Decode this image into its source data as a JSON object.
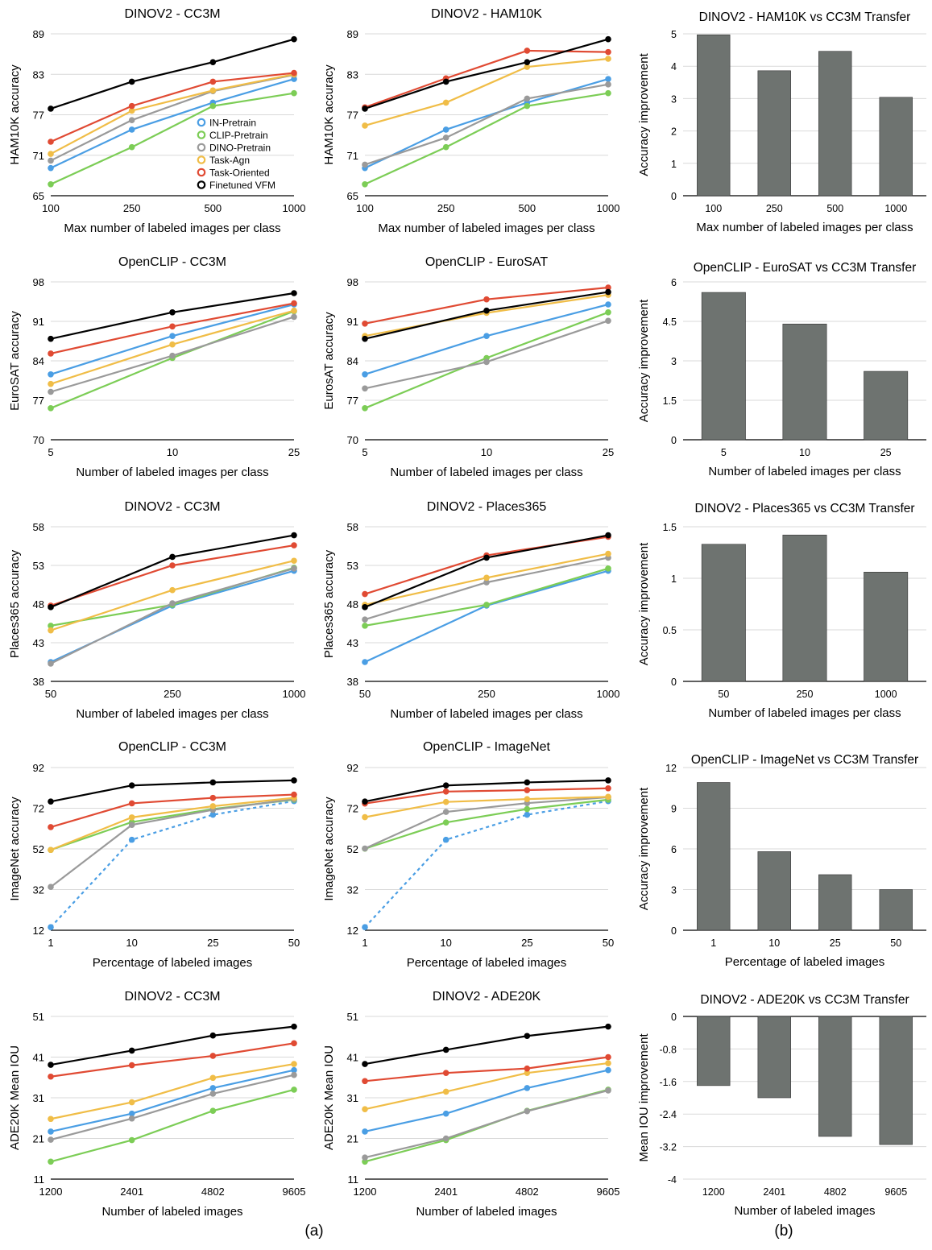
{
  "colors": {
    "IN-Pretrain": "#4a9ee4",
    "CLIP-Pretrain": "#7ccd56",
    "DINO-Pretrain": "#9a9a9a",
    "Task-Agn": "#f0bd47",
    "Task-Oriented": "#e04a33",
    "Finetuned VFM": "#000000",
    "bar": "#6e7370"
  },
  "legend_entries": [
    "IN-Pretrain",
    "CLIP-Pretrain",
    "DINO-Pretrain",
    "Task-Agn",
    "Task-Oriented",
    "Finetuned VFM"
  ],
  "sub_labels": {
    "a": "(a)",
    "b": "(b)"
  },
  "chart_data": [
    {
      "id": "r1c1",
      "type": "line",
      "title": "DINOV2 - CC3M",
      "xlabel": "Max number of labeled images per class",
      "ylabel": "HAM10K accuracy",
      "categories": [
        "100",
        "250",
        "500",
        "1000"
      ],
      "yticks": [
        "65",
        "71",
        "77",
        "83",
        "89"
      ],
      "ylim": [
        65,
        89
      ],
      "legend": "center-right",
      "series": [
        {
          "name": "IN-Pretrain",
          "values": [
            69.1,
            74.8,
            78.8,
            82.3
          ]
        },
        {
          "name": "CLIP-Pretrain",
          "values": [
            66.7,
            72.2,
            78.3,
            80.2
          ]
        },
        {
          "name": "DINO-Pretrain",
          "values": [
            70.2,
            76.2,
            80.5,
            82.9
          ]
        },
        {
          "name": "Task-Agn",
          "values": [
            71.2,
            77.6,
            80.6,
            83.0
          ]
        },
        {
          "name": "Task-Oriented",
          "values": [
            73.0,
            78.3,
            81.9,
            83.2
          ]
        },
        {
          "name": "Finetuned VFM",
          "values": [
            77.9,
            81.9,
            84.8,
            88.2
          ]
        }
      ]
    },
    {
      "id": "r1c2",
      "type": "line",
      "title": "DINOV2 - HAM10K",
      "xlabel": "Max number of labeled images per class",
      "ylabel": "HAM10K accuracy",
      "categories": [
        "100",
        "250",
        "500",
        "1000"
      ],
      "yticks": [
        "65",
        "71",
        "77",
        "83",
        "89"
      ],
      "ylim": [
        65,
        89
      ],
      "series": [
        {
          "name": "IN-Pretrain",
          "values": [
            69.1,
            74.8,
            78.8,
            82.3
          ]
        },
        {
          "name": "CLIP-Pretrain",
          "values": [
            66.7,
            72.2,
            78.3,
            80.2
          ]
        },
        {
          "name": "DINO-Pretrain",
          "values": [
            69.6,
            73.6,
            79.4,
            81.5
          ]
        },
        {
          "name": "Task-Agn",
          "values": [
            75.4,
            78.8,
            84.1,
            85.3
          ]
        },
        {
          "name": "Task-Oriented",
          "values": [
            78.1,
            82.4,
            86.5,
            86.3
          ]
        },
        {
          "name": "Finetuned VFM",
          "values": [
            77.9,
            81.9,
            84.8,
            88.2
          ]
        }
      ]
    },
    {
      "id": "r2c1",
      "type": "line",
      "title": "OpenCLIP - CC3M",
      "xlabel": "Number of labeled images per class",
      "ylabel": "EuroSAT accuracy",
      "categories": [
        "5",
        "10",
        "25"
      ],
      "yticks": [
        "70",
        "77",
        "84",
        "91",
        "98"
      ],
      "ylim": [
        70,
        98
      ],
      "series": [
        {
          "name": "IN-Pretrain",
          "values": [
            81.6,
            88.4,
            94.0
          ]
        },
        {
          "name": "CLIP-Pretrain",
          "values": [
            75.6,
            84.5,
            92.8
          ]
        },
        {
          "name": "DINO-Pretrain",
          "values": [
            78.5,
            84.9,
            91.8
          ]
        },
        {
          "name": "Task-Agn",
          "values": [
            79.9,
            86.9,
            92.9
          ]
        },
        {
          "name": "Task-Oriented",
          "values": [
            85.3,
            90.1,
            94.2
          ]
        },
        {
          "name": "Finetuned VFM",
          "values": [
            87.9,
            92.6,
            96.0
          ]
        }
      ]
    },
    {
      "id": "r2c2",
      "type": "line",
      "title": "OpenCLIP - EuroSAT",
      "xlabel": "Number of labeled images per class",
      "ylabel": "EurosAT accuracy",
      "categories": [
        "5",
        "10",
        "25"
      ],
      "yticks": [
        "70",
        "77",
        "84",
        "91",
        "98"
      ],
      "ylim": [
        70,
        98
      ],
      "series": [
        {
          "name": "IN-Pretrain",
          "values": [
            81.6,
            88.4,
            94.0
          ]
        },
        {
          "name": "CLIP-Pretrain",
          "values": [
            75.6,
            84.5,
            92.6
          ]
        },
        {
          "name": "DINO-Pretrain",
          "values": [
            79.1,
            83.8,
            91.1
          ]
        },
        {
          "name": "Task-Agn",
          "values": [
            88.4,
            92.5,
            95.7
          ]
        },
        {
          "name": "Task-Oriented",
          "values": [
            90.6,
            94.9,
            97.0
          ]
        },
        {
          "name": "Finetuned VFM",
          "values": [
            87.9,
            92.9,
            96.2
          ]
        }
      ]
    },
    {
      "id": "r3c1",
      "type": "line",
      "title": "DINOV2 - CC3M",
      "xlabel": "Number of labeled images per class",
      "ylabel": "Places365 accuracy",
      "categories": [
        "50",
        "250",
        "1000"
      ],
      "yticks": [
        "38",
        "43",
        "48",
        "53",
        "58"
      ],
      "ylim": [
        38,
        58
      ],
      "series": [
        {
          "name": "IN-Pretrain",
          "values": [
            40.5,
            47.8,
            52.3
          ]
        },
        {
          "name": "CLIP-Pretrain",
          "values": [
            45.2,
            47.9,
            52.7
          ]
        },
        {
          "name": "DINO-Pretrain",
          "values": [
            40.3,
            48.1,
            52.6
          ]
        },
        {
          "name": "Task-Agn",
          "values": [
            44.6,
            49.8,
            53.6
          ]
        },
        {
          "name": "Task-Oriented",
          "values": [
            47.8,
            53.0,
            55.6
          ]
        },
        {
          "name": "Finetuned VFM",
          "values": [
            47.6,
            54.1,
            56.9
          ]
        }
      ]
    },
    {
      "id": "r3c2",
      "type": "line",
      "title": "DINOV2 - Places365",
      "xlabel": "Number of labeled images per class",
      "ylabel": "Places365 accuracy",
      "categories": [
        "50",
        "250",
        "1000"
      ],
      "yticks": [
        "38",
        "43",
        "48",
        "53",
        "58"
      ],
      "ylim": [
        38,
        58
      ],
      "series": [
        {
          "name": "IN-Pretrain",
          "values": [
            40.5,
            47.8,
            52.3
          ]
        },
        {
          "name": "CLIP-Pretrain",
          "values": [
            45.2,
            47.9,
            52.6
          ]
        },
        {
          "name": "DINO-Pretrain",
          "values": [
            46.0,
            50.8,
            54.0
          ]
        },
        {
          "name": "Task-Agn",
          "values": [
            47.9,
            51.4,
            54.5
          ]
        },
        {
          "name": "Task-Oriented",
          "values": [
            49.3,
            54.3,
            56.7
          ]
        },
        {
          "name": "Finetuned VFM",
          "values": [
            47.6,
            54.0,
            56.9
          ]
        }
      ]
    },
    {
      "id": "r4c1",
      "type": "line",
      "title": "OpenCLIP - CC3M",
      "xlabel": "Percentage of labeled images",
      "ylabel": "ImageNet accuracy",
      "categories": [
        "1",
        "10",
        "25",
        "50"
      ],
      "yticks": [
        "12",
        "32",
        "52",
        "72",
        "92"
      ],
      "ylim": [
        12,
        92
      ],
      "series": [
        {
          "name": "IN-Pretrain",
          "values": [
            13.5,
            56.5,
            68.8,
            75.5
          ],
          "dashed": true
        },
        {
          "name": "CLIP-Pretrain",
          "values": [
            51.5,
            65.2,
            71.6,
            76.2
          ]
        },
        {
          "name": "DINO-Pretrain",
          "values": [
            33.3,
            63.8,
            71.2,
            76.5
          ]
        },
        {
          "name": "Task-Agn",
          "values": [
            51.5,
            67.5,
            73.0,
            77.1
          ]
        },
        {
          "name": "Task-Oriented",
          "values": [
            62.7,
            74.4,
            77.1,
            78.7
          ]
        },
        {
          "name": "Finetuned VFM",
          "values": [
            75.3,
            83.2,
            84.7,
            85.7
          ]
        }
      ]
    },
    {
      "id": "r4c2",
      "type": "line",
      "title": "OpenCLIP - ImageNet",
      "xlabel": "Percentage of labeled images",
      "ylabel": "ImageNet accuracy",
      "categories": [
        "1",
        "10",
        "25",
        "50"
      ],
      "yticks": [
        "12",
        "32",
        "52",
        "72",
        "92"
      ],
      "ylim": [
        12,
        92
      ],
      "series": [
        {
          "name": "IN-Pretrain",
          "values": [
            13.5,
            56.5,
            68.8,
            75.5
          ],
          "dashed": true
        },
        {
          "name": "CLIP-Pretrain",
          "values": [
            52.1,
            65.0,
            71.6,
            76.2
          ]
        },
        {
          "name": "DINO-Pretrain",
          "values": [
            52.2,
            70.2,
            74.5,
            77.4
          ]
        },
        {
          "name": "Task-Agn",
          "values": [
            67.6,
            75.1,
            76.5,
            77.6
          ]
        },
        {
          "name": "Task-Oriented",
          "values": [
            74.3,
            80.2,
            80.9,
            81.8
          ]
        },
        {
          "name": "Finetuned VFM",
          "values": [
            75.3,
            83.2,
            84.7,
            85.7
          ]
        }
      ]
    },
    {
      "id": "r5c1",
      "type": "line",
      "title": "DINOV2 - CC3M",
      "xlabel": "Number of labeled images",
      "ylabel": "ADE20K Mean IOU",
      "categories": [
        "1200",
        "2401",
        "4802",
        "9605"
      ],
      "yticks": [
        "11",
        "21",
        "31",
        "41",
        "51"
      ],
      "ylim": [
        11,
        51
      ],
      "series": [
        {
          "name": "IN-Pretrain",
          "values": [
            22.7,
            27.1,
            33.4,
            37.8
          ]
        },
        {
          "name": "CLIP-Pretrain",
          "values": [
            15.3,
            20.6,
            27.8,
            33.0
          ]
        },
        {
          "name": "DINO-Pretrain",
          "values": [
            20.7,
            25.9,
            32.0,
            36.6
          ]
        },
        {
          "name": "Task-Agn",
          "values": [
            25.8,
            29.9,
            35.9,
            39.3
          ]
        },
        {
          "name": "Task-Oriented",
          "values": [
            36.2,
            39.0,
            41.3,
            44.4
          ]
        },
        {
          "name": "Finetuned VFM",
          "values": [
            39.1,
            42.6,
            46.3,
            48.5
          ]
        }
      ]
    },
    {
      "id": "r5c2",
      "type": "line",
      "title": "DINOV2 - ADE20K",
      "xlabel": "Number of labeled images",
      "ylabel": "ADE20K Mean IOU",
      "categories": [
        "1200",
        "2401",
        "4802",
        "9605"
      ],
      "yticks": [
        "11",
        "21",
        "31",
        "41",
        "51"
      ],
      "ylim": [
        11,
        51
      ],
      "series": [
        {
          "name": "IN-Pretrain",
          "values": [
            22.7,
            27.1,
            33.4,
            37.8
          ]
        },
        {
          "name": "CLIP-Pretrain",
          "values": [
            15.3,
            20.6,
            27.8,
            33.0
          ]
        },
        {
          "name": "DINO-Pretrain",
          "values": [
            16.3,
            21.0,
            27.7,
            32.8
          ]
        },
        {
          "name": "Task-Agn",
          "values": [
            28.2,
            32.5,
            37.1,
            39.5
          ]
        },
        {
          "name": "Task-Oriented",
          "values": [
            35.1,
            37.1,
            38.2,
            41.0
          ]
        },
        {
          "name": "Finetuned VFM",
          "values": [
            39.3,
            42.8,
            46.2,
            48.5
          ]
        }
      ]
    },
    {
      "id": "r1c3",
      "type": "bar",
      "title": "DINOV2 - HAM10K vs CC3M Transfer",
      "xlabel": "Max number of labeled images per class",
      "ylabel": "Accuracy improvement",
      "categories": [
        "100",
        "250",
        "500",
        "1000"
      ],
      "values": [
        4.97,
        3.86,
        4.46,
        3.04
      ],
      "yticks": [
        "0",
        "1",
        "2",
        "3",
        "4",
        "5"
      ],
      "ylim": [
        0,
        5
      ]
    },
    {
      "id": "r2c3",
      "type": "bar",
      "title": "OpenCLIP - EuroSAT vs CC3M Transfer",
      "xlabel": "Number of labeled images per class",
      "ylabel": "Accuracy improvement",
      "categories": [
        "5",
        "10",
        "25"
      ],
      "values": [
        5.6,
        4.4,
        2.6
      ],
      "yticks": [
        "0",
        "1.5",
        "3",
        "4.5",
        "6"
      ],
      "ylim": [
        0,
        6
      ]
    },
    {
      "id": "r3c3",
      "type": "bar",
      "title": "DINOV2 - Places365 vs CC3M Transfer",
      "xlabel": "Number of labeled images per class",
      "ylabel": "Accuracy improvement",
      "categories": [
        "50",
        "250",
        "1000"
      ],
      "values": [
        1.33,
        1.42,
        1.06
      ],
      "yticks": [
        "0",
        "0.5",
        "1",
        "1.5"
      ],
      "ylim": [
        0,
        1.5
      ]
    },
    {
      "id": "r4c3",
      "type": "bar",
      "title": "OpenCLIP - ImageNet vs CC3M Transfer",
      "xlabel": "Percentage of labeled images",
      "ylabel": "Accuracy improvement",
      "categories": [
        "1",
        "10",
        "25",
        "50"
      ],
      "values": [
        10.9,
        5.8,
        4.1,
        3.0
      ],
      "yticks": [
        "0",
        "3",
        "6",
        "9",
        "12"
      ],
      "ylim": [
        0,
        12
      ]
    },
    {
      "id": "r5c3",
      "type": "bar",
      "title": "DINOV2 - ADE20K vs CC3M Transfer",
      "xlabel": "Number of labeled images",
      "ylabel": "Mean IOU improvement",
      "categories": [
        "1200",
        "2401",
        "4802",
        "9605"
      ],
      "values": [
        -1.7,
        -2.0,
        -2.95,
        -3.15
      ],
      "yticks": [
        "-4",
        "-3.2",
        "-2.4",
        "-1.6",
        "-0.8",
        "0"
      ],
      "ylim": [
        -4,
        0
      ],
      "xaxis_at_top": true
    }
  ]
}
